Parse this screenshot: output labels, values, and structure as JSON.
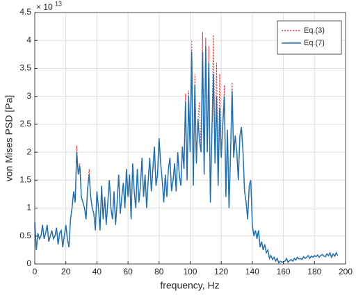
{
  "chart_data": {
    "type": "line",
    "xlabel": "frequency, Hz",
    "ylabel": "von Mises PSD [Pa]",
    "y_scale_base": "× 10",
    "y_scale_exponent": "13",
    "xlim": [
      0,
      200
    ],
    "xticks": [
      0,
      20,
      40,
      60,
      80,
      100,
      120,
      140,
      160,
      180,
      200
    ],
    "ylim": [
      0,
      4.5
    ],
    "yticks": [
      0,
      0.5,
      1,
      1.5,
      2,
      2.5,
      3,
      3.5,
      4,
      4.5
    ],
    "grid": true,
    "legend": "northeast",
    "x": [
      0,
      1,
      2,
      3,
      4,
      5,
      6,
      7,
      8,
      9,
      10,
      11,
      12,
      13,
      14,
      15,
      16,
      17,
      18,
      19,
      20,
      21,
      22,
      23,
      24,
      25,
      26,
      27,
      28,
      29,
      30,
      31,
      32,
      33,
      34,
      35,
      36,
      37,
      38,
      39,
      40,
      41,
      42,
      43,
      44,
      45,
      46,
      47,
      48,
      49,
      50,
      51,
      52,
      53,
      54,
      55,
      56,
      57,
      58,
      59,
      60,
      61,
      62,
      63,
      64,
      65,
      66,
      67,
      68,
      69,
      70,
      71,
      72,
      73,
      74,
      75,
      76,
      77,
      78,
      79,
      80,
      81,
      82,
      83,
      84,
      85,
      86,
      87,
      88,
      89,
      90,
      91,
      92,
      93,
      94,
      95,
      96,
      97,
      98,
      99,
      100,
      101,
      102,
      103,
      104,
      105,
      106,
      107,
      108,
      109,
      110,
      111,
      112,
      113,
      114,
      115,
      116,
      117,
      118,
      119,
      120,
      121,
      122,
      123,
      124,
      125,
      126,
      127,
      128,
      129,
      130,
      131,
      132,
      133,
      134,
      135,
      136,
      137,
      138,
      139,
      140,
      141,
      142,
      143,
      144,
      145,
      146,
      147,
      148,
      149,
      150,
      151,
      152,
      153,
      154,
      155,
      156,
      157,
      158,
      159,
      160,
      161,
      162,
      163,
      164,
      165,
      166,
      167,
      168,
      169,
      170,
      171,
      172,
      173,
      174,
      175,
      176,
      177,
      178,
      179,
      180,
      181,
      182,
      183,
      184,
      185,
      186,
      187,
      188,
      189,
      190,
      191,
      192,
      193,
      194,
      195
    ],
    "series": [
      {
        "name": "Eq.(3)",
        "color": "#e8312e",
        "style": "dotted",
        "values": [
          0.75,
          0.25,
          0.55,
          0.45,
          0.5,
          0.7,
          0.45,
          0.55,
          0.7,
          0.4,
          0.5,
          0.6,
          0.45,
          0.5,
          0.65,
          0.35,
          0.55,
          0.6,
          0.3,
          0.5,
          0.7,
          0.45,
          0.3,
          0.8,
          1.0,
          1.3,
          1.1,
          2.12,
          1.6,
          1.8,
          1.2,
          1.1,
          1.0,
          0.8,
          1.35,
          1.7,
          1.2,
          1.0,
          0.9,
          0.6,
          1.3,
          1.0,
          0.6,
          1.4,
          0.8,
          1.2,
          0.7,
          1.1,
          1.5,
          1.0,
          0.8,
          1.3,
          0.7,
          1.1,
          1.6,
          0.9,
          1.2,
          1.45,
          1.0,
          1.7,
          1.2,
          1.6,
          0.8,
          1.8,
          1.3,
          1.0,
          1.7,
          1.1,
          1.4,
          1.9,
          1.2,
          1.6,
          1.0,
          1.5,
          1.9,
          1.3,
          1.7,
          2.1,
          1.4,
          1.6,
          2.25,
          1.8,
          1.5,
          1.1,
          1.6,
          1.2,
          1.7,
          1.9,
          1.3,
          1.5,
          1.8,
          1.3,
          2.0,
          1.6,
          1.4,
          2.1,
          1.7,
          3.05,
          1.5,
          3.1,
          2.0,
          4.0,
          1.4,
          3.4,
          1.8,
          2.6,
          2.9,
          2.0,
          4.15,
          1.6,
          4.05,
          2.0,
          3.9,
          1.1,
          2.4,
          4.1,
          1.8,
          3.6,
          1.4,
          3.4,
          1.9,
          2.5,
          3.2,
          1.2,
          2.4,
          1.0,
          2.0,
          3.25,
          1.9,
          2.3,
          2.0,
          1.5,
          2.3,
          2.45,
          2.0,
          1.3,
          1.1,
          0.8,
          1.4,
          1.5,
          0.7,
          0.5,
          0.6,
          0.45,
          0.6,
          0.3,
          0.4,
          0.25,
          0.35,
          0.2,
          0.25,
          0.1,
          0.15,
          0.08,
          0.12,
          0.05,
          0.1,
          0.02,
          0.05,
          0.03,
          0.04,
          0.05,
          0.1,
          0.03,
          0.06,
          0.08,
          0.05,
          0.1,
          0.07,
          0.12,
          0.09,
          0.1,
          0.08,
          0.13,
          0.1,
          0.12,
          0.15,
          0.1,
          0.14,
          0.12,
          0.15,
          0.13,
          0.16,
          0.12,
          0.15,
          0.17,
          0.14,
          0.13,
          0.18,
          0.15,
          0.2,
          0.12,
          0.18,
          0.14,
          0.2,
          0.15
        ]
      },
      {
        "name": "Eq.(7)",
        "color": "#1f6fb4",
        "style": "solid",
        "values": [
          0.75,
          0.25,
          0.55,
          0.45,
          0.5,
          0.7,
          0.45,
          0.55,
          0.7,
          0.4,
          0.5,
          0.6,
          0.45,
          0.5,
          0.65,
          0.35,
          0.55,
          0.6,
          0.3,
          0.5,
          0.7,
          0.45,
          0.3,
          0.8,
          1.0,
          1.3,
          1.1,
          2.0,
          1.6,
          1.75,
          1.2,
          1.1,
          1.0,
          0.8,
          1.35,
          1.6,
          1.2,
          1.0,
          0.9,
          0.6,
          1.3,
          1.0,
          0.6,
          1.4,
          0.8,
          1.2,
          0.7,
          1.1,
          1.5,
          1.0,
          0.8,
          1.3,
          0.7,
          1.1,
          1.6,
          0.9,
          1.2,
          1.45,
          1.0,
          1.7,
          1.2,
          1.6,
          0.8,
          1.8,
          1.3,
          1.0,
          1.7,
          1.1,
          1.4,
          1.9,
          1.2,
          1.6,
          1.0,
          1.5,
          1.9,
          1.3,
          1.7,
          2.1,
          1.4,
          1.6,
          2.25,
          1.8,
          1.5,
          1.1,
          1.6,
          1.2,
          1.7,
          1.9,
          1.3,
          1.5,
          1.8,
          1.3,
          2.0,
          1.6,
          1.4,
          2.1,
          1.7,
          2.9,
          1.5,
          3.0,
          2.0,
          3.8,
          1.4,
          3.2,
          1.8,
          2.6,
          2.2,
          2.0,
          3.8,
          1.6,
          3.9,
          2.0,
          3.6,
          1.1,
          2.4,
          3.4,
          1.8,
          3.0,
          1.4,
          2.8,
          1.9,
          2.5,
          3.0,
          1.2,
          2.4,
          1.0,
          2.0,
          3.1,
          1.9,
          2.3,
          2.0,
          1.5,
          2.3,
          2.45,
          2.0,
          1.3,
          1.1,
          0.8,
          1.4,
          1.5,
          0.7,
          0.5,
          0.6,
          0.45,
          0.6,
          0.3,
          0.4,
          0.25,
          0.35,
          0.2,
          0.25,
          0.1,
          0.15,
          0.08,
          0.12,
          0.05,
          0.1,
          0.02,
          0.05,
          0.03,
          0.04,
          0.05,
          0.1,
          0.03,
          0.06,
          0.08,
          0.05,
          0.1,
          0.07,
          0.12,
          0.09,
          0.1,
          0.08,
          0.13,
          0.1,
          0.12,
          0.15,
          0.1,
          0.14,
          0.12,
          0.15,
          0.13,
          0.16,
          0.12,
          0.15,
          0.17,
          0.14,
          0.13,
          0.18,
          0.15,
          0.2,
          0.12,
          0.18,
          0.14,
          0.2,
          0.15
        ]
      }
    ]
  }
}
